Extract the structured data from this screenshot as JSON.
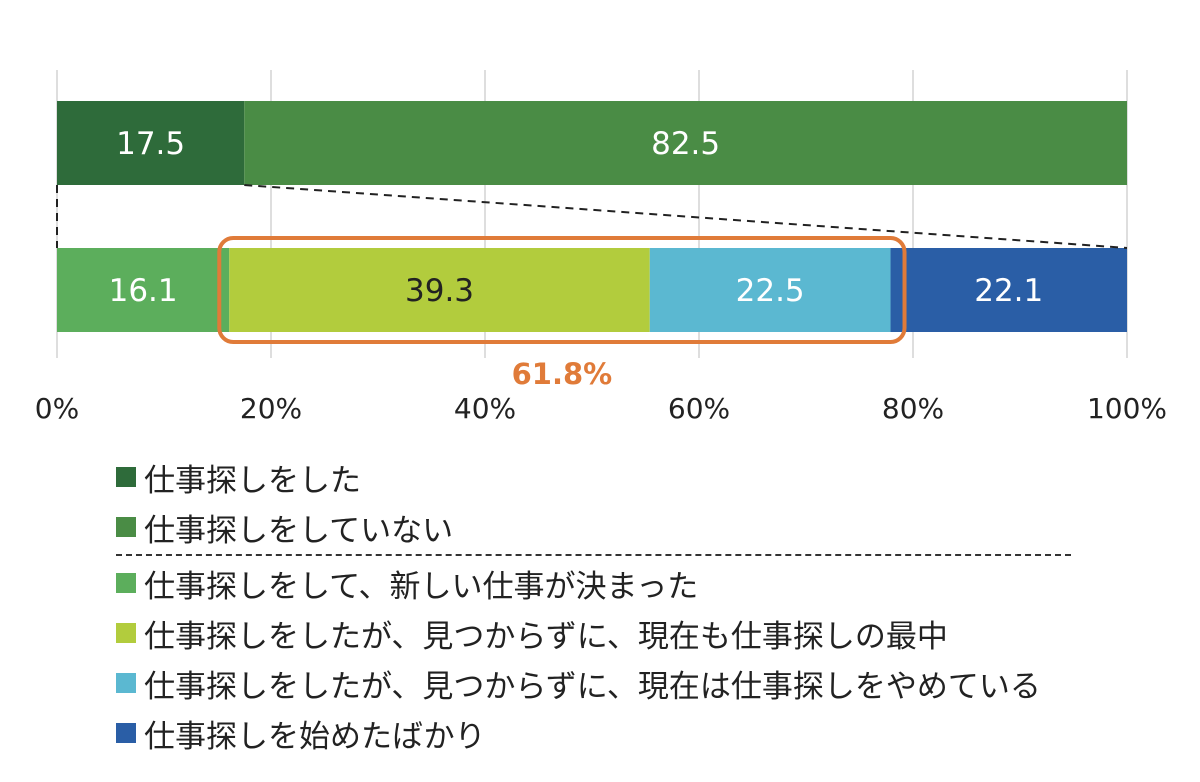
{
  "chart_data": {
    "type": "bar",
    "orientation": "horizontal",
    "stacked": true,
    "x_ticks": [
      "0%",
      "20%",
      "40%",
      "60%",
      "80%",
      "100%"
    ],
    "xlim": [
      0,
      100
    ],
    "grid": true,
    "legend_position": "bottom",
    "rows": [
      {
        "segments": [
          {
            "name": "仕事探しをした",
            "value": 17.5,
            "label": "17.5",
            "color": "#2e6b3a",
            "label_color": "#ffffff"
          },
          {
            "name": "仕事探しをしていない",
            "value": 82.5,
            "label": "82.5",
            "color": "#4a8c45",
            "label_color": "#ffffff"
          }
        ]
      },
      {
        "segments": [
          {
            "name": "仕事探しをして、新しい仕事が決まった",
            "value": 16.1,
            "label": "16.1",
            "color": "#5cae5c",
            "label_color": "#ffffff"
          },
          {
            "name": "仕事探しをしたが、見つからずに、現在も仕事探しの最中",
            "value": 39.3,
            "label": "39.3",
            "color": "#b2cc3d",
            "label_color": "#222222"
          },
          {
            "name": "仕事探しをしたが、見つからずに、現在は仕事探しをやめている",
            "value": 22.5,
            "label": "22.5",
            "color": "#5bb8d1",
            "label_color": "#ffffff"
          },
          {
            "name": "仕事探しを始めたばかり",
            "value": 22.1,
            "label": "22.1",
            "color": "#2a5ea6",
            "label_color": "#ffffff"
          }
        ]
      }
    ],
    "annotation": {
      "text": "61.8%",
      "color": "#e07b39",
      "range": [
        16.1,
        77.9
      ]
    }
  },
  "legend": [
    {
      "label": "仕事探しをした",
      "color": "#2e6b3a"
    },
    {
      "label": "仕事探しをしていない",
      "color": "#4a8c45"
    },
    {
      "label": "仕事探しをして、新しい仕事が決まった",
      "color": "#5cae5c"
    },
    {
      "label": "仕事探しをしたが、見つからずに、現在も仕事探しの最中",
      "color": "#b2cc3d"
    },
    {
      "label": "仕事探しをしたが、見つからずに、現在は仕事探しをやめている",
      "color": "#5bb8d1"
    },
    {
      "label": "仕事探しを始めたばかり",
      "color": "#2a5ea6"
    }
  ]
}
